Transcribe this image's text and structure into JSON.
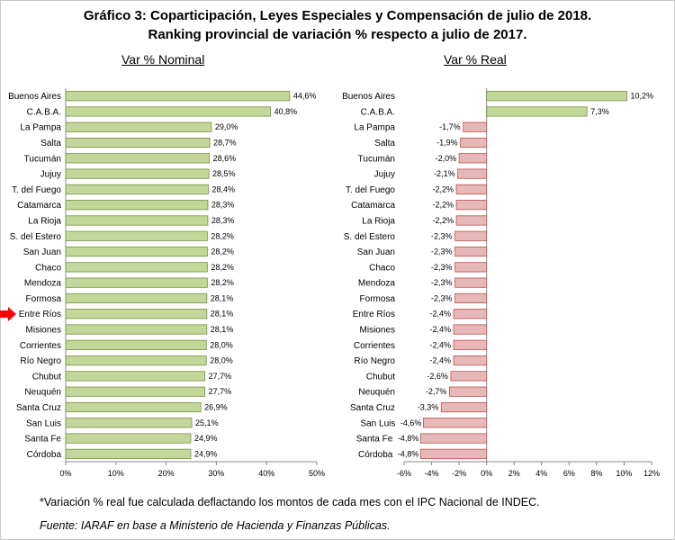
{
  "title_line1": "Gráfico 3: Coparticipación, Leyes Especiales y Compensación de julio de 2018.",
  "title_line2": "Ranking provincial de variación % respecto a julio de 2017.",
  "footnote": "*Variación % real fue calculada deflactando los montos de cada mes con el IPC Nacional de INDEC.",
  "source": "Fuente: IARAF en base a Ministerio de Hacienda y Finanzas Públicas.",
  "highlighted_category": "Entre Ríos",
  "colors": {
    "positive_bar": "#c4d79b",
    "positive_border": "#76923c",
    "negative_bar": "#e6b8b7",
    "negative_border": "#c0504d",
    "arrow": "#ff0000"
  },
  "chart_data": [
    {
      "type": "bar",
      "orientation": "horizontal",
      "title": "Var % Nominal",
      "categories": [
        "Buenos Aires",
        "C.A.B.A.",
        "La Pampa",
        "Salta",
        "Tucumán",
        "Jujuy",
        "T. del Fuego",
        "Catamarca",
        "La Rioja",
        "S. del Estero",
        "San Juan",
        "Chaco",
        "Mendoza",
        "Formosa",
        "Entre Ríos",
        "Misiones",
        "Corrientes",
        "Río Negro",
        "Chubut",
        "Neuquén",
        "Santa Cruz",
        "San Luis",
        "Santa Fe",
        "Córdoba"
      ],
      "values": [
        44.6,
        40.8,
        29.0,
        28.7,
        28.6,
        28.5,
        28.4,
        28.3,
        28.3,
        28.2,
        28.2,
        28.2,
        28.2,
        28.1,
        28.1,
        28.1,
        28.0,
        28.0,
        27.7,
        27.7,
        26.9,
        25.1,
        24.9,
        24.9
      ],
      "data_labels": [
        "44,6%",
        "40,8%",
        "29,0%",
        "28,7%",
        "28,6%",
        "28,5%",
        "28,4%",
        "28,3%",
        "28,3%",
        "28,2%",
        "28,2%",
        "28,2%",
        "28,2%",
        "28,1%",
        "28,1%",
        "28,1%",
        "28,0%",
        "28,0%",
        "27,7%",
        "27,7%",
        "26,9%",
        "25,1%",
        "24,9%",
        "24,9%"
      ],
      "xlim": [
        0,
        50
      ],
      "ticks": [
        0,
        10,
        20,
        30,
        40,
        50
      ],
      "tick_labels": [
        "0%",
        "10%",
        "20%",
        "30%",
        "40%",
        "50%"
      ],
      "grid": false
    },
    {
      "type": "bar",
      "orientation": "horizontal",
      "title": "Var % Real",
      "categories": [
        "Buenos Aires",
        "C.A.B.A.",
        "La Pampa",
        "Salta",
        "Tucumán",
        "Jujuy",
        "T. del Fuego",
        "Catamarca",
        "La Rioja",
        "S. del Estero",
        "San Juan",
        "Chaco",
        "Mendoza",
        "Formosa",
        "Entre Ríos",
        "Misiones",
        "Corrientes",
        "Río Negro",
        "Chubut",
        "Neuquén",
        "Santa Cruz",
        "San Luis",
        "Santa Fe",
        "Córdoba"
      ],
      "values": [
        10.2,
        7.3,
        -1.7,
        -1.9,
        -2.0,
        -2.1,
        -2.2,
        -2.2,
        -2.2,
        -2.3,
        -2.3,
        -2.3,
        -2.3,
        -2.3,
        -2.4,
        -2.4,
        -2.4,
        -2.4,
        -2.6,
        -2.7,
        -3.3,
        -4.6,
        -4.8,
        -4.8
      ],
      "data_labels": [
        "10,2%",
        "7,3%",
        "-1,7%",
        "-1,9%",
        "-2,0%",
        "-2,1%",
        "-2,2%",
        "-2,2%",
        "-2,2%",
        "-2,3%",
        "-2,3%",
        "-2,3%",
        "-2,3%",
        "-2,3%",
        "-2,4%",
        "-2,4%",
        "-2,4%",
        "-2,4%",
        "-2,6%",
        "-2,7%",
        "-3,3%",
        "-4,6%",
        "-4,8%",
        "-4,8%"
      ],
      "xlim": [
        -6,
        12
      ],
      "ticks": [
        -6,
        -4,
        -2,
        0,
        2,
        4,
        6,
        8,
        10,
        12
      ],
      "tick_labels": [
        "-6%",
        "-4%",
        "-2%",
        "0%",
        "2%",
        "4%",
        "6%",
        "8%",
        "10%",
        "12%"
      ],
      "grid": false
    }
  ]
}
